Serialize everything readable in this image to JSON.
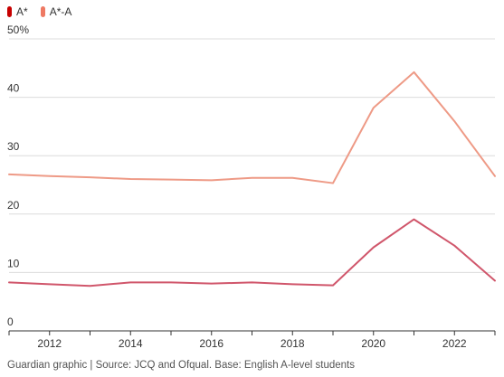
{
  "legend": [
    {
      "label": "A*",
      "color": "#c70000"
    },
    {
      "label": "A*-A",
      "color": "#ee7963"
    }
  ],
  "chart_data": {
    "type": "line",
    "x": [
      2011,
      2012,
      2013,
      2014,
      2015,
      2016,
      2017,
      2018,
      2019,
      2020,
      2021,
      2022,
      2023
    ],
    "xticks": [
      "2012",
      "2014",
      "2016",
      "2018",
      "2020",
      "2022"
    ],
    "ytick_labels": [
      "0",
      "10",
      "20",
      "30",
      "40",
      "50%"
    ],
    "ylim": [
      0,
      50
    ],
    "xlim": [
      2011,
      2023
    ],
    "grid": true,
    "legend_position": "top-left",
    "series": [
      {
        "name": "A*",
        "color": "#d0566b",
        "values": [
          8.3,
          8.0,
          7.7,
          8.3,
          8.3,
          8.1,
          8.3,
          8.0,
          7.8,
          14.3,
          19.1,
          14.6,
          8.6
        ]
      },
      {
        "name": "A*-A",
        "color": "#ee9a86",
        "values": [
          26.8,
          26.5,
          26.3,
          26.0,
          25.9,
          25.8,
          26.2,
          26.2,
          25.3,
          38.2,
          44.3,
          35.9,
          26.5
        ]
      }
    ]
  },
  "source": "Guardian graphic | Source: JCQ and Ofqual. Base: English A-level students"
}
